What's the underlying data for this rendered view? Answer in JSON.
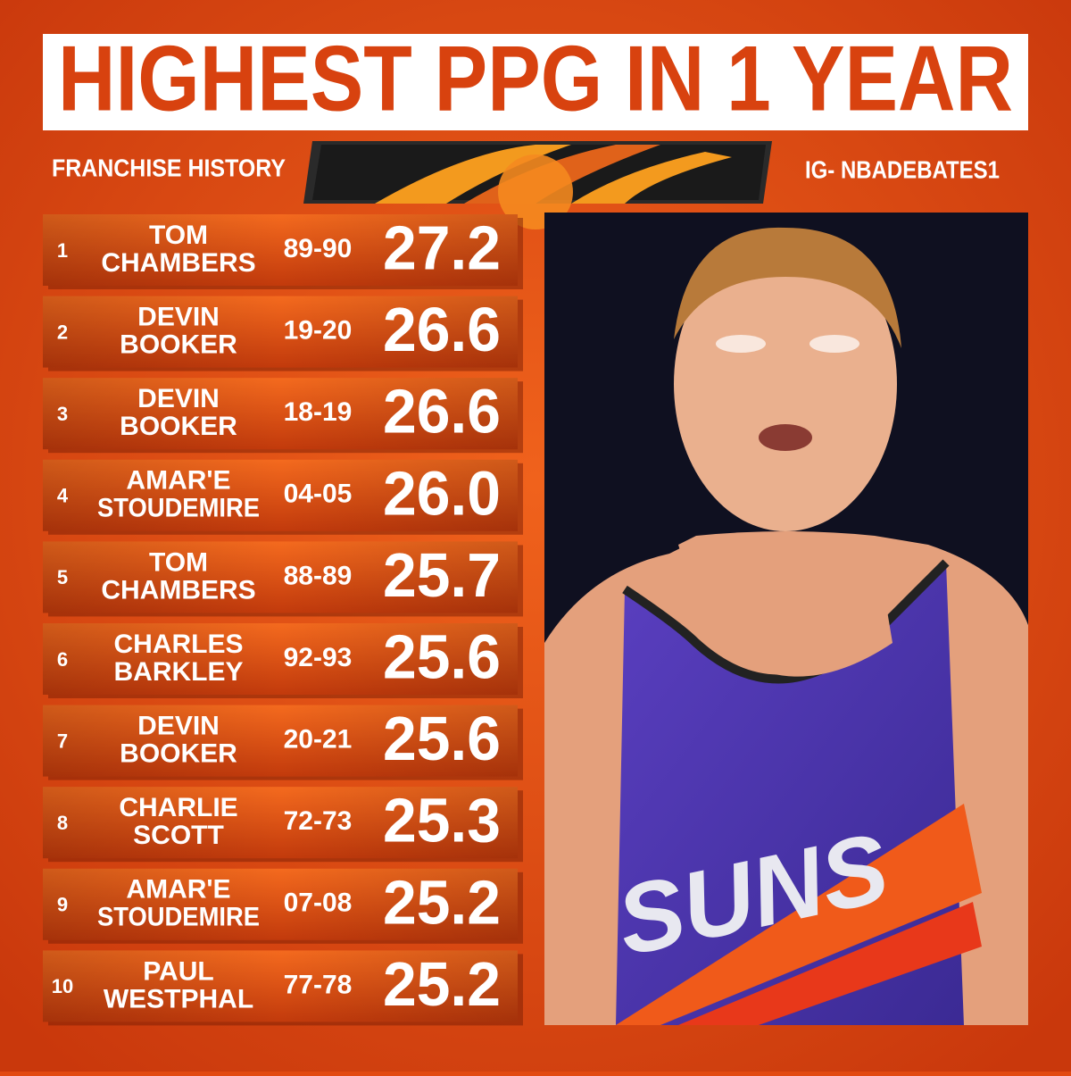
{
  "header": {
    "title": "HIGHEST PPG IN 1 YEAR",
    "left": "FRANCHISE HISTORY",
    "right": "IG- NBADEBATES1"
  },
  "table": {
    "rows": [
      {
        "rank": "1",
        "name": [
          "TOM",
          "CHAMBERS"
        ],
        "season": "89-90",
        "ppg": "27.2"
      },
      {
        "rank": "2",
        "name": [
          "DEVIN",
          "BOOKER"
        ],
        "season": "19-20",
        "ppg": "26.6"
      },
      {
        "rank": "3",
        "name": [
          "DEVIN",
          "BOOKER"
        ],
        "season": "18-19",
        "ppg": "26.6"
      },
      {
        "rank": "4",
        "name": [
          "AMAR'E",
          "STOUDEMIRE"
        ],
        "season": "04-05",
        "ppg": "26.0"
      },
      {
        "rank": "5",
        "name": [
          "TOM",
          "CHAMBERS"
        ],
        "season": "88-89",
        "ppg": "25.7"
      },
      {
        "rank": "6",
        "name": [
          "CHARLES",
          "BARKLEY"
        ],
        "season": "92-93",
        "ppg": "25.6"
      },
      {
        "rank": "7",
        "name": [
          "DEVIN",
          "BOOKER"
        ],
        "season": "20-21",
        "ppg": "25.6"
      },
      {
        "rank": "8",
        "name": [
          "CHARLIE",
          "SCOTT"
        ],
        "season": "72-73",
        "ppg": "25.3"
      },
      {
        "rank": "9",
        "name": [
          "AMAR'E",
          "STOUDEMIRE"
        ],
        "season": "07-08",
        "ppg": "25.2"
      },
      {
        "rank": "10",
        "name": [
          "PAUL",
          "WESTPHAL"
        ],
        "season": "77-78",
        "ppg": "25.2"
      }
    ]
  },
  "photo": {
    "jersey_text": "SUNS"
  }
}
